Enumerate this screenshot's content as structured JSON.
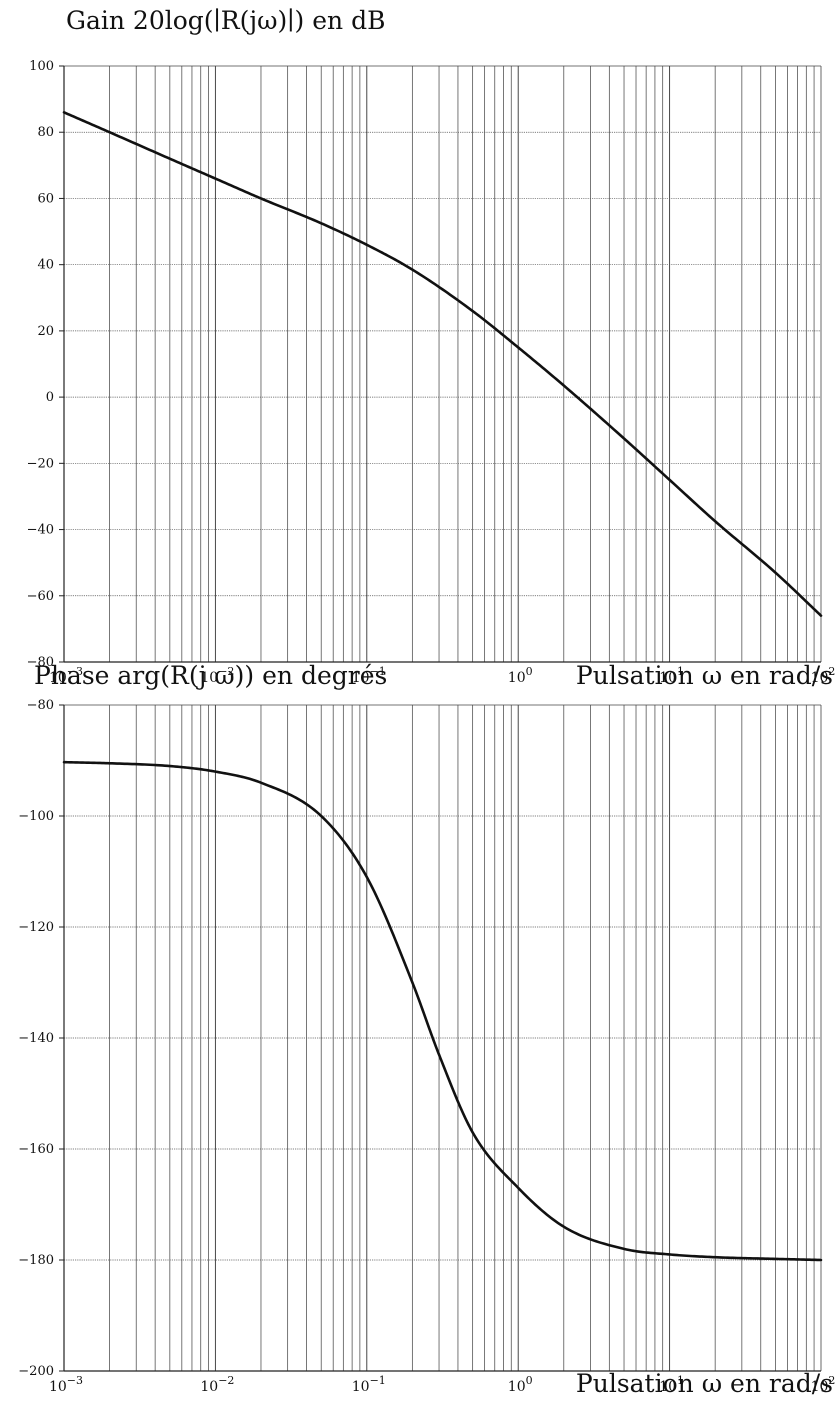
{
  "chart_data": [
    {
      "type": "line",
      "title": "Gain 20log(∣R(jω)∣) en dB",
      "xlabel": "",
      "ylabel": "Gain 20log(∣R(jω)∣) en dB",
      "xscale": "log",
      "xlim": [
        0.001,
        100
      ],
      "ylim": [
        -80,
        100
      ],
      "x_tick_labels": [
        "10^-3",
        "10^-2",
        "10^-1",
        "10^0",
        "10^1",
        "10^2"
      ],
      "y_tick_labels": [
        "100",
        "80",
        "60",
        "40",
        "20",
        "0",
        "−20",
        "−40",
        "−60",
        "−80"
      ],
      "grid": true,
      "series": [
        {
          "x": [
            0.001,
            0.002,
            0.005,
            0.01,
            0.02,
            0.05,
            0.1,
            0.2,
            0.5,
            1,
            2,
            5,
            10,
            20,
            50,
            100
          ],
          "values": [
            86,
            80,
            72,
            66,
            60,
            52.5,
            46,
            38.5,
            26,
            15,
            3.5,
            -12.5,
            -25,
            -37.5,
            -53,
            -66
          ]
        }
      ],
      "line_color": "#111111"
    },
    {
      "type": "line",
      "title": "Phase arg(R(j ω)) en degrés",
      "xlabel": "Pulsation ω en rad/s",
      "ylabel": "Phase arg(R(j ω)) en degrés",
      "xscale": "log",
      "xlim": [
        0.001,
        100
      ],
      "ylim": [
        -200,
        -80
      ],
      "x_tick_labels": [
        "10^-3",
        "10^-2",
        "10^-1",
        "10^0",
        "10^1",
        "10^2"
      ],
      "y_tick_labels": [
        "−80",
        "−100",
        "−120",
        "−140",
        "−160",
        "−180",
        "−200"
      ],
      "grid": true,
      "series": [
        {
          "x": [
            0.001,
            0.002,
            0.005,
            0.01,
            0.02,
            0.05,
            0.1,
            0.2,
            0.3,
            0.5,
            1,
            2,
            5,
            10,
            20,
            50,
            100
          ],
          "values": [
            -90.3,
            -90.5,
            -91,
            -92,
            -94,
            -100,
            -111,
            -130,
            -143,
            -157,
            -167,
            -174,
            -178,
            -179,
            -179.5,
            -179.8,
            -180
          ]
        }
      ],
      "line_color": "#111111"
    }
  ],
  "gain_plot": {
    "title": "Gain 20log(∣R(jω)∣) en dB",
    "xlabel": "Pulsation ω en rad/s"
  },
  "phase_plot": {
    "title": "Phase arg(R(j ω)) en degrés",
    "xlabel": "Pulsation ω en rad/s"
  }
}
